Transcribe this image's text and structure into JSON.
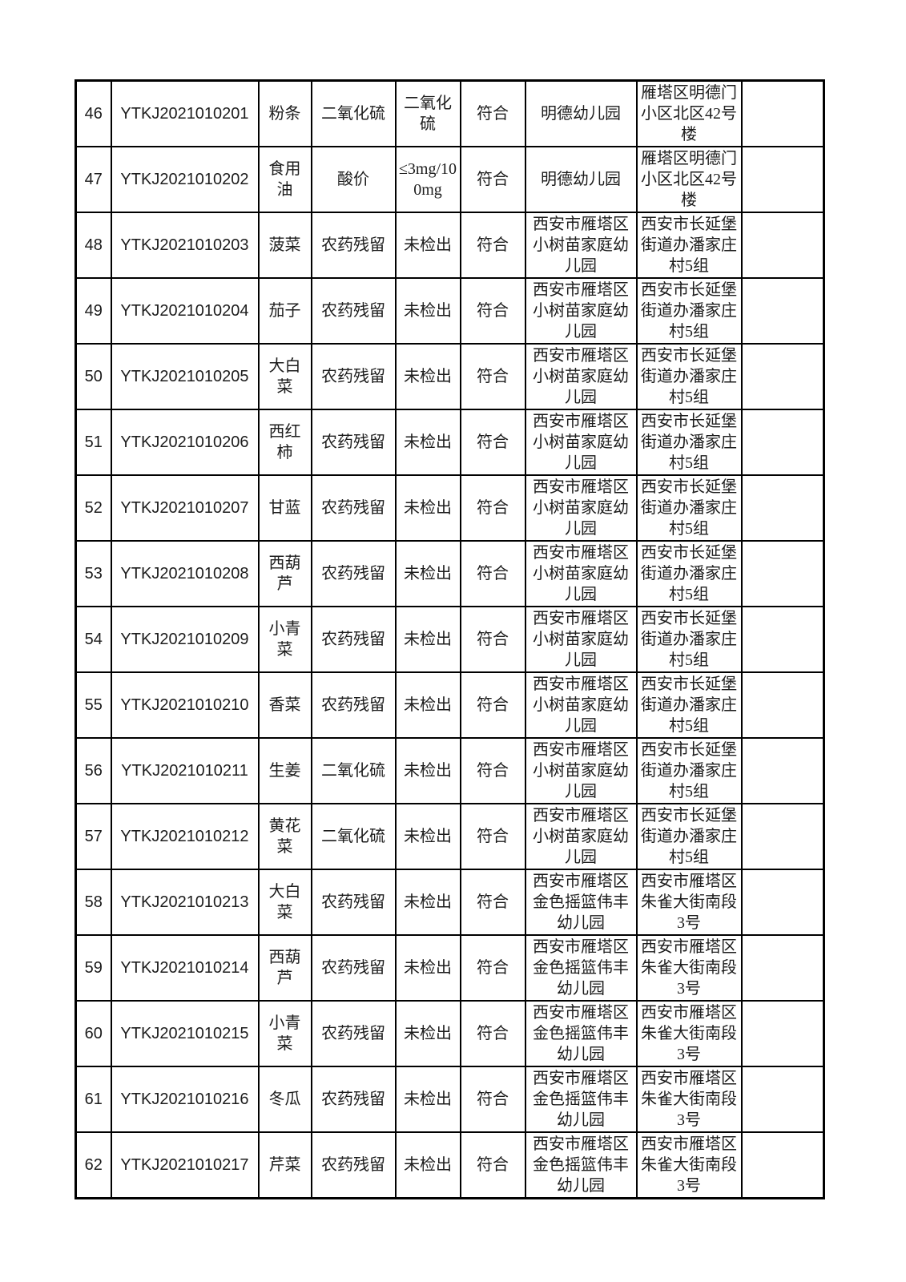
{
  "page": {
    "background_color": "#ffffff",
    "table_border_color": "#000000",
    "text_color": "#1c1c1c"
  },
  "table": {
    "rows": [
      {
        "no": "46",
        "sample_id": "YTKJ2021010201",
        "food": "粉条",
        "test_item": "二氧化硫",
        "result": "二氧化硫",
        "conclusion": "符合",
        "institution": "明德幼儿园",
        "address": "雁塔区明德门小区北区42号楼",
        "remark": ""
      },
      {
        "no": "47",
        "sample_id": "YTKJ2021010202",
        "food": "食用油",
        "test_item": "酸价",
        "result": "≤3mg/100mg",
        "conclusion": "符合",
        "institution": "明德幼儿园",
        "address": "雁塔区明德门小区北区42号楼",
        "remark": ""
      },
      {
        "no": "48",
        "sample_id": "YTKJ2021010203",
        "food": "菠菜",
        "test_item": "农药残留",
        "result": "未检出",
        "conclusion": "符合",
        "institution": "西安市雁塔区小树苗家庭幼儿园",
        "address": "西安市长延堡街道办潘家庄村5组",
        "remark": ""
      },
      {
        "no": "49",
        "sample_id": "YTKJ2021010204",
        "food": "茄子",
        "test_item": "农药残留",
        "result": "未检出",
        "conclusion": "符合",
        "institution": "西安市雁塔区小树苗家庭幼儿园",
        "address": "西安市长延堡街道办潘家庄村5组",
        "remark": ""
      },
      {
        "no": "50",
        "sample_id": "YTKJ2021010205",
        "food": "大白菜",
        "test_item": "农药残留",
        "result": "未检出",
        "conclusion": "符合",
        "institution": "西安市雁塔区小树苗家庭幼儿园",
        "address": "西安市长延堡街道办潘家庄村5组",
        "remark": ""
      },
      {
        "no": "51",
        "sample_id": "YTKJ2021010206",
        "food": "西红柿",
        "test_item": "农药残留",
        "result": "未检出",
        "conclusion": "符合",
        "institution": "西安市雁塔区小树苗家庭幼儿园",
        "address": "西安市长延堡街道办潘家庄村5组",
        "remark": ""
      },
      {
        "no": "52",
        "sample_id": "YTKJ2021010207",
        "food": "甘蓝",
        "test_item": "农药残留",
        "result": "未检出",
        "conclusion": "符合",
        "institution": "西安市雁塔区小树苗家庭幼儿园",
        "address": "西安市长延堡街道办潘家庄村5组",
        "remark": ""
      },
      {
        "no": "53",
        "sample_id": "YTKJ2021010208",
        "food": "西葫芦",
        "test_item": "农药残留",
        "result": "未检出",
        "conclusion": "符合",
        "institution": "西安市雁塔区小树苗家庭幼儿园",
        "address": "西安市长延堡街道办潘家庄村5组",
        "remark": ""
      },
      {
        "no": "54",
        "sample_id": "YTKJ2021010209",
        "food": "小青菜",
        "test_item": "农药残留",
        "result": "未检出",
        "conclusion": "符合",
        "institution": "西安市雁塔区小树苗家庭幼儿园",
        "address": "西安市长延堡街道办潘家庄村5组",
        "remark": ""
      },
      {
        "no": "55",
        "sample_id": "YTKJ2021010210",
        "food": "香菜",
        "test_item": "农药残留",
        "result": "未检出",
        "conclusion": "符合",
        "institution": "西安市雁塔区小树苗家庭幼儿园",
        "address": "西安市长延堡街道办潘家庄村5组",
        "remark": ""
      },
      {
        "no": "56",
        "sample_id": "YTKJ2021010211",
        "food": "生姜",
        "test_item": "二氧化硫",
        "result": "未检出",
        "conclusion": "符合",
        "institution": "西安市雁塔区小树苗家庭幼儿园",
        "address": "西安市长延堡街道办潘家庄村5组",
        "remark": ""
      },
      {
        "no": "57",
        "sample_id": "YTKJ2021010212",
        "food": "黄花菜",
        "test_item": "二氧化硫",
        "result": "未检出",
        "conclusion": "符合",
        "institution": "西安市雁塔区小树苗家庭幼儿园",
        "address": "西安市长延堡街道办潘家庄村5组",
        "remark": ""
      },
      {
        "no": "58",
        "sample_id": "YTKJ2021010213",
        "food": "大白菜",
        "test_item": "农药残留",
        "result": "未检出",
        "conclusion": "符合",
        "institution": "西安市雁塔区金色摇篮伟丰幼儿园",
        "address": "西安市雁塔区朱雀大街南段3号",
        "remark": ""
      },
      {
        "no": "59",
        "sample_id": "YTKJ2021010214",
        "food": "西葫芦",
        "test_item": "农药残留",
        "result": "未检出",
        "conclusion": "符合",
        "institution": "西安市雁塔区金色摇篮伟丰幼儿园",
        "address": "西安市雁塔区朱雀大街南段3号",
        "remark": ""
      },
      {
        "no": "60",
        "sample_id": "YTKJ2021010215",
        "food": "小青菜",
        "test_item": "农药残留",
        "result": "未检出",
        "conclusion": "符合",
        "institution": "西安市雁塔区金色摇篮伟丰幼儿园",
        "address": "西安市雁塔区朱雀大街南段3号",
        "remark": ""
      },
      {
        "no": "61",
        "sample_id": "YTKJ2021010216",
        "food": "冬瓜",
        "test_item": "农药残留",
        "result": "未检出",
        "conclusion": "符合",
        "institution": "西安市雁塔区金色摇篮伟丰幼儿园",
        "address": "西安市雁塔区朱雀大街南段3号",
        "remark": ""
      },
      {
        "no": "62",
        "sample_id": "YTKJ2021010217",
        "food": "芹菜",
        "test_item": "农药残留",
        "result": "未检出",
        "conclusion": "符合",
        "institution": "西安市雁塔区金色摇篮伟丰幼儿园",
        "address": "西安市雁塔区朱雀大街南段3号",
        "remark": ""
      }
    ]
  }
}
